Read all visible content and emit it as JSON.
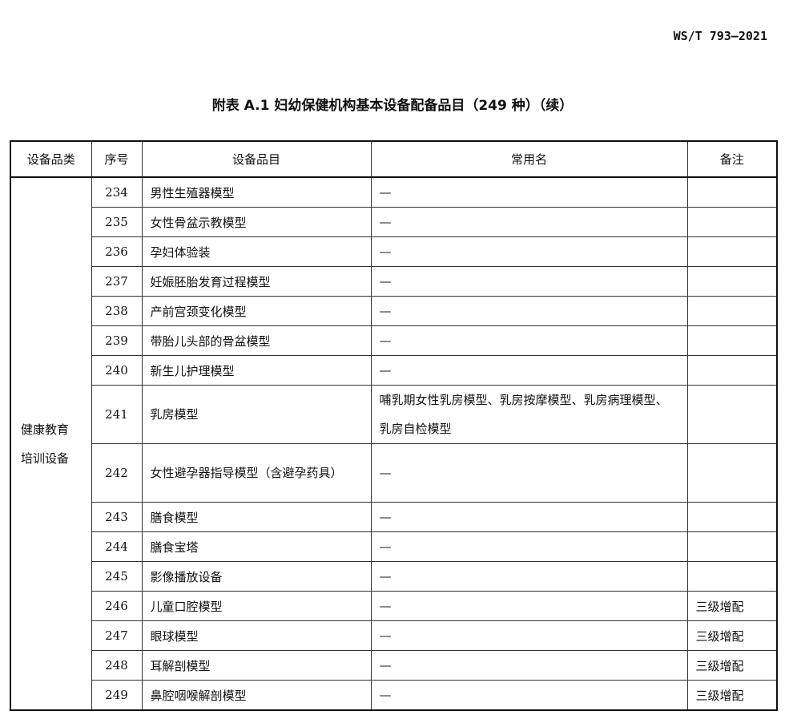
{
  "header": {
    "standard_number": "WS/T 793—2021"
  },
  "table_title": "附表 A.1 妇幼保健机构基本设备配备品目（249 种）（续）",
  "columns": [
    "设备品类",
    "序号",
    "设备品目",
    "常用名",
    "备注"
  ],
  "category": "健康教育培训设备",
  "category_lines": [
    "健康教育",
    "培训设备"
  ],
  "rows": [
    {
      "no": "234",
      "item": "男性生殖器模型",
      "common": "—",
      "note": ""
    },
    {
      "no": "235",
      "item": "女性骨盆示教模型",
      "common": "—",
      "note": ""
    },
    {
      "no": "236",
      "item": "孕妇体验装",
      "common": "—",
      "note": ""
    },
    {
      "no": "237",
      "item": "妊娠胚胎发育过程模型",
      "common": "—",
      "note": ""
    },
    {
      "no": "238",
      "item": "产前宫颈变化模型",
      "common": "—",
      "note": ""
    },
    {
      "no": "239",
      "item": "带胎儿头部的骨盆模型",
      "common": "—",
      "note": ""
    },
    {
      "no": "240",
      "item": "新生儿护理模型",
      "common": "—",
      "note": ""
    },
    {
      "no": "241",
      "item": "乳房模型",
      "common": "哺乳期女性乳房模型、乳房按摩模型、乳房病理模型、乳房自检模型",
      "note": ""
    },
    {
      "no": "242",
      "item": "女性避孕器指导模型（含避孕药具）",
      "common": "—",
      "note": ""
    },
    {
      "no": "243",
      "item": "膳食模型",
      "common": "—",
      "note": ""
    },
    {
      "no": "244",
      "item": "膳食宝塔",
      "common": "—",
      "note": ""
    },
    {
      "no": "245",
      "item": "影像播放设备",
      "common": "—",
      "note": ""
    },
    {
      "no": "246",
      "item": "儿童口腔模型",
      "common": "—",
      "note": "三级增配"
    },
    {
      "no": "247",
      "item": "眼球模型",
      "common": "—",
      "note": "三级增配"
    },
    {
      "no": "248",
      "item": "耳解剖模型",
      "common": "—",
      "note": "三级增配"
    },
    {
      "no": "249",
      "item": "鼻腔咽喉解剖模型",
      "common": "—",
      "note": "三级增配"
    }
  ]
}
